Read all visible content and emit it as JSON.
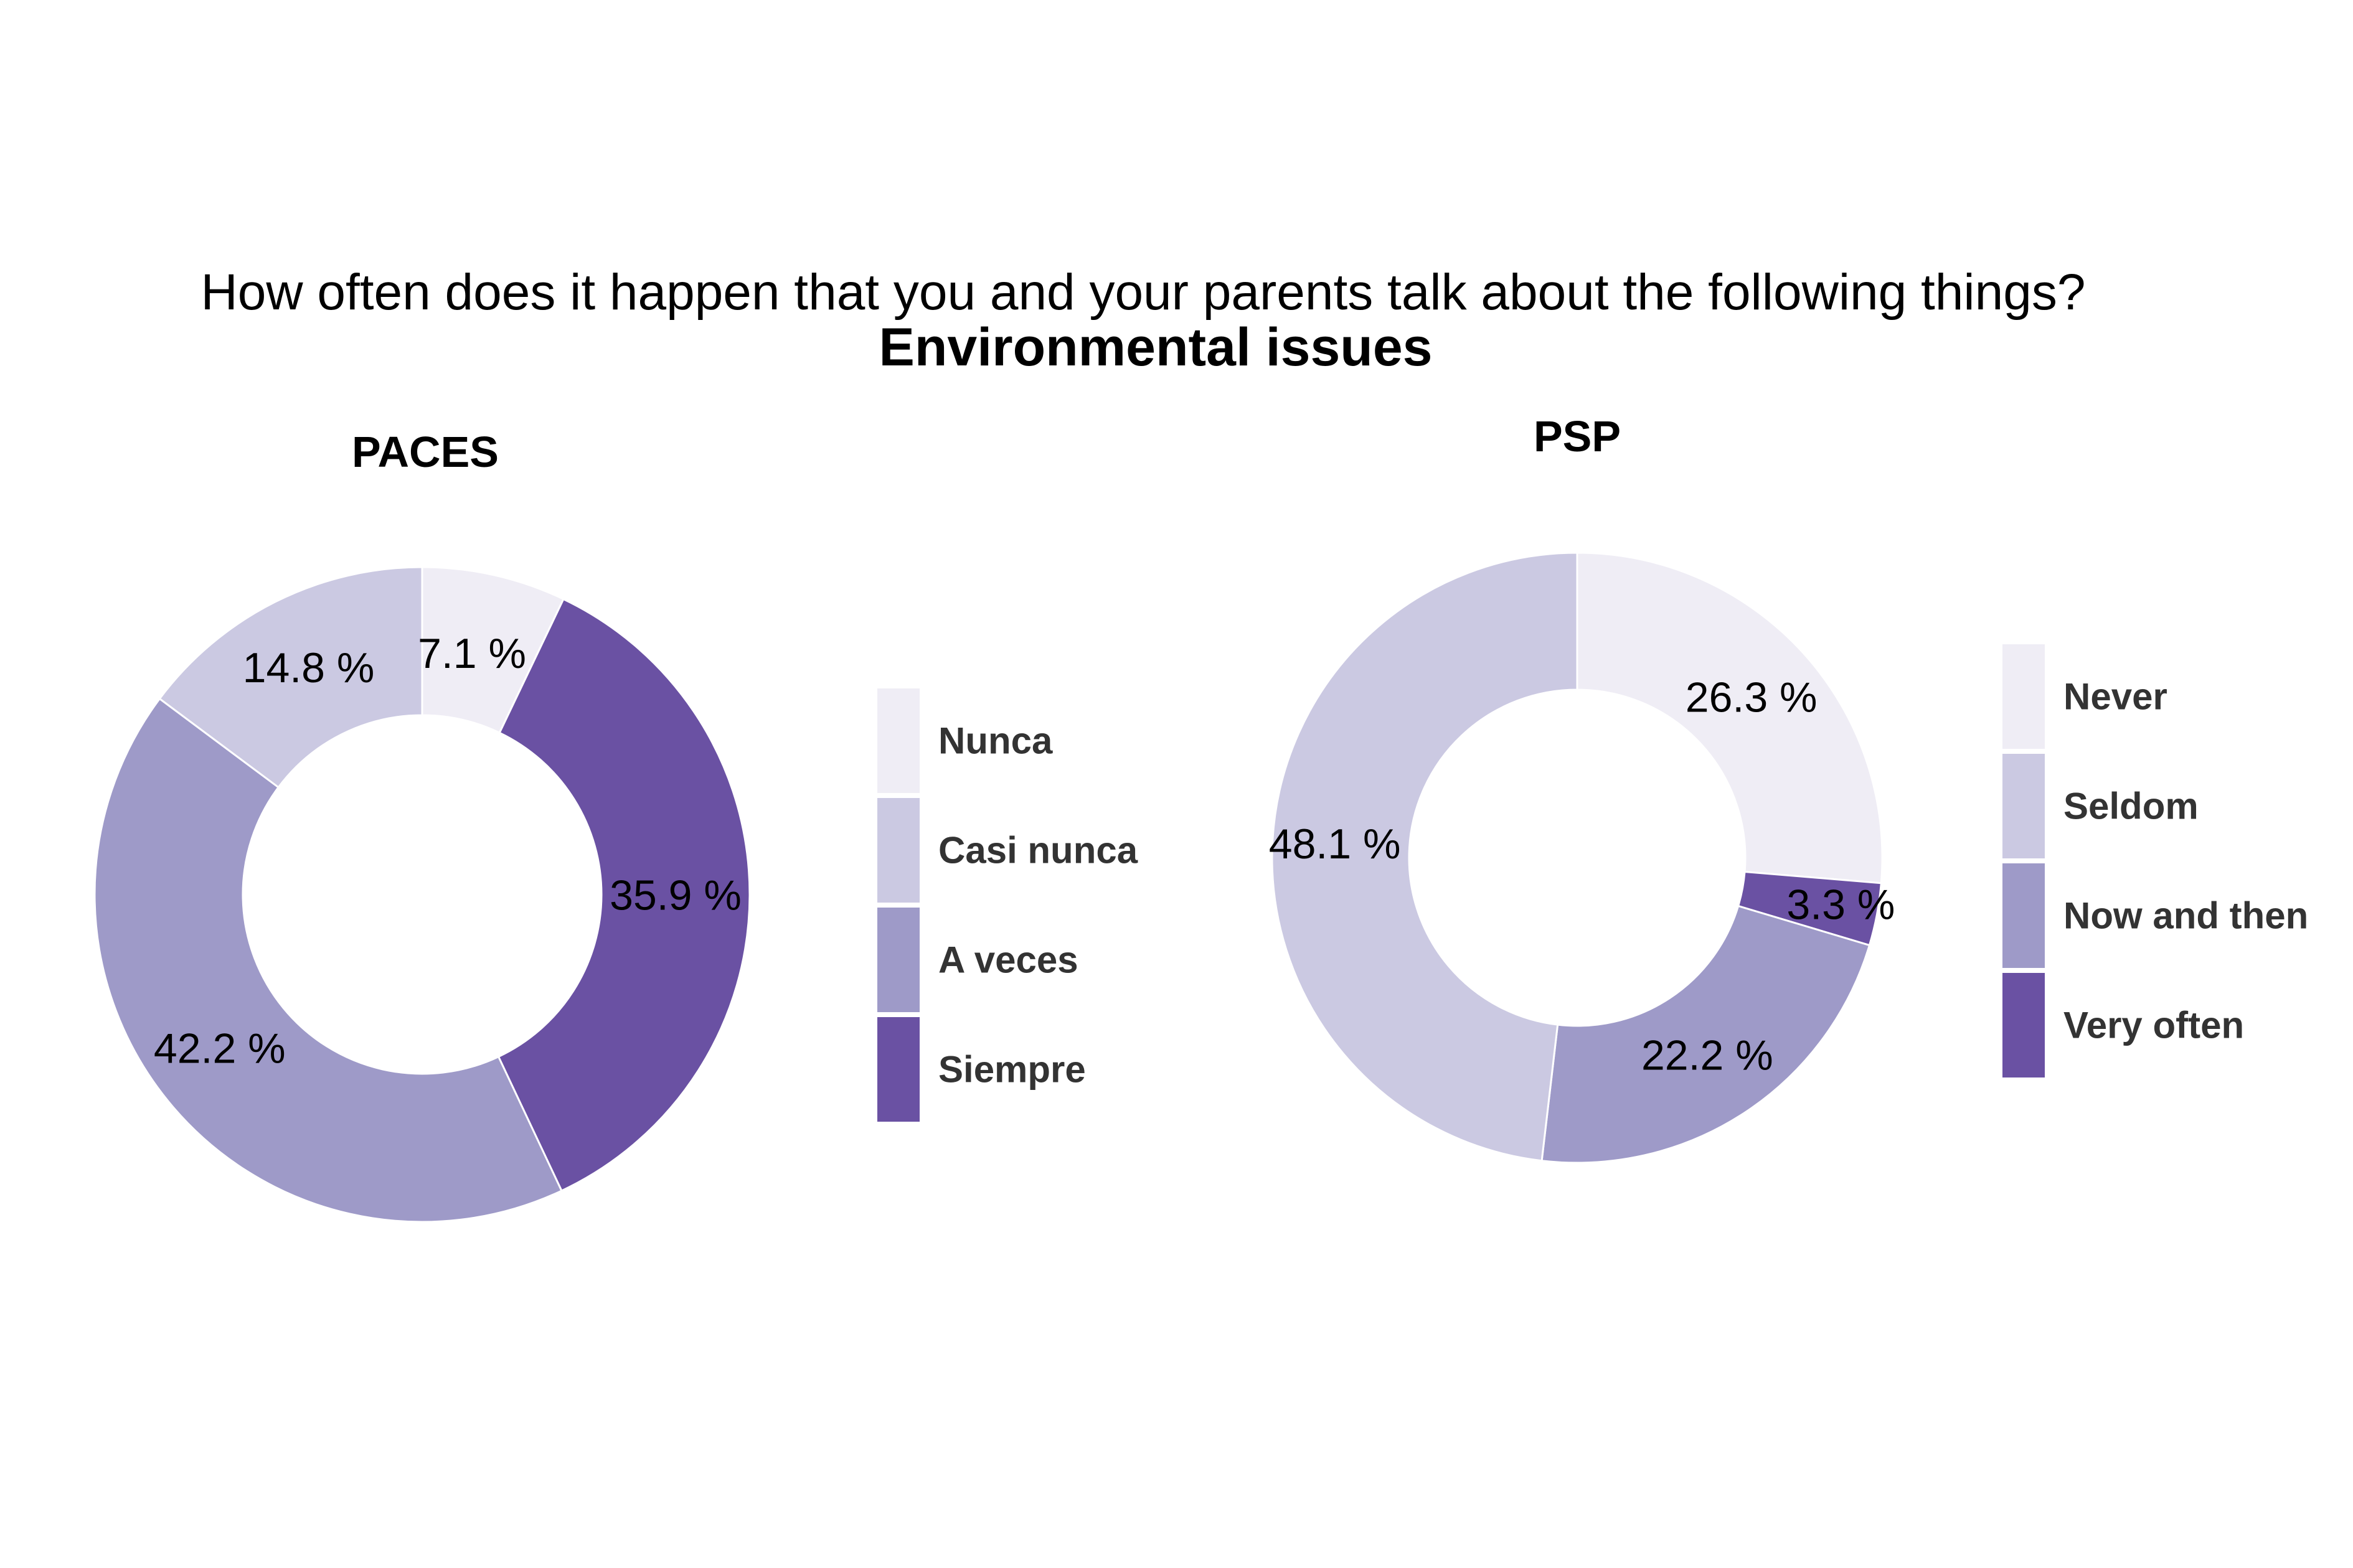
{
  "header": {
    "question": "How often does it happen that you and your parents talk about the following things?",
    "topic": "Environmental issues"
  },
  "colors": {
    "level1": "#efedf5",
    "level2": "#cbc9e2",
    "level3": "#9e9ac8",
    "level4": "#6a51a3",
    "slice_border": "#ffffff",
    "text": "#000000",
    "legend_text": "#333333"
  },
  "chart_data": [
    {
      "type": "pie",
      "title": "PACES",
      "donut": true,
      "start": "clockwise from 12 o'clock",
      "slice_order": [
        "Nunca",
        "Siempre",
        "A veces",
        "Casi nunca"
      ],
      "categories": [
        "Nunca",
        "Casi nunca",
        "A veces",
        "Siempre"
      ],
      "values": [
        7.1,
        14.8,
        42.2,
        35.9
      ],
      "value_labels": [
        "7.1 %",
        "14.8 %",
        "42.2 %",
        "35.9 %"
      ],
      "legend_position": "right"
    },
    {
      "type": "pie",
      "title": "PSP",
      "donut": true,
      "start": "clockwise from 12 o'clock",
      "slice_order": [
        "Never",
        "Very often",
        "Now and then",
        "Seldom"
      ],
      "categories": [
        "Never",
        "Seldom",
        "Now and then",
        "Very often"
      ],
      "values": [
        26.3,
        48.1,
        22.2,
        3.3
      ],
      "value_labels": [
        "26.3 %",
        "48.1 %",
        "22.2 %",
        "3.3 %"
      ],
      "legend_position": "right"
    }
  ]
}
